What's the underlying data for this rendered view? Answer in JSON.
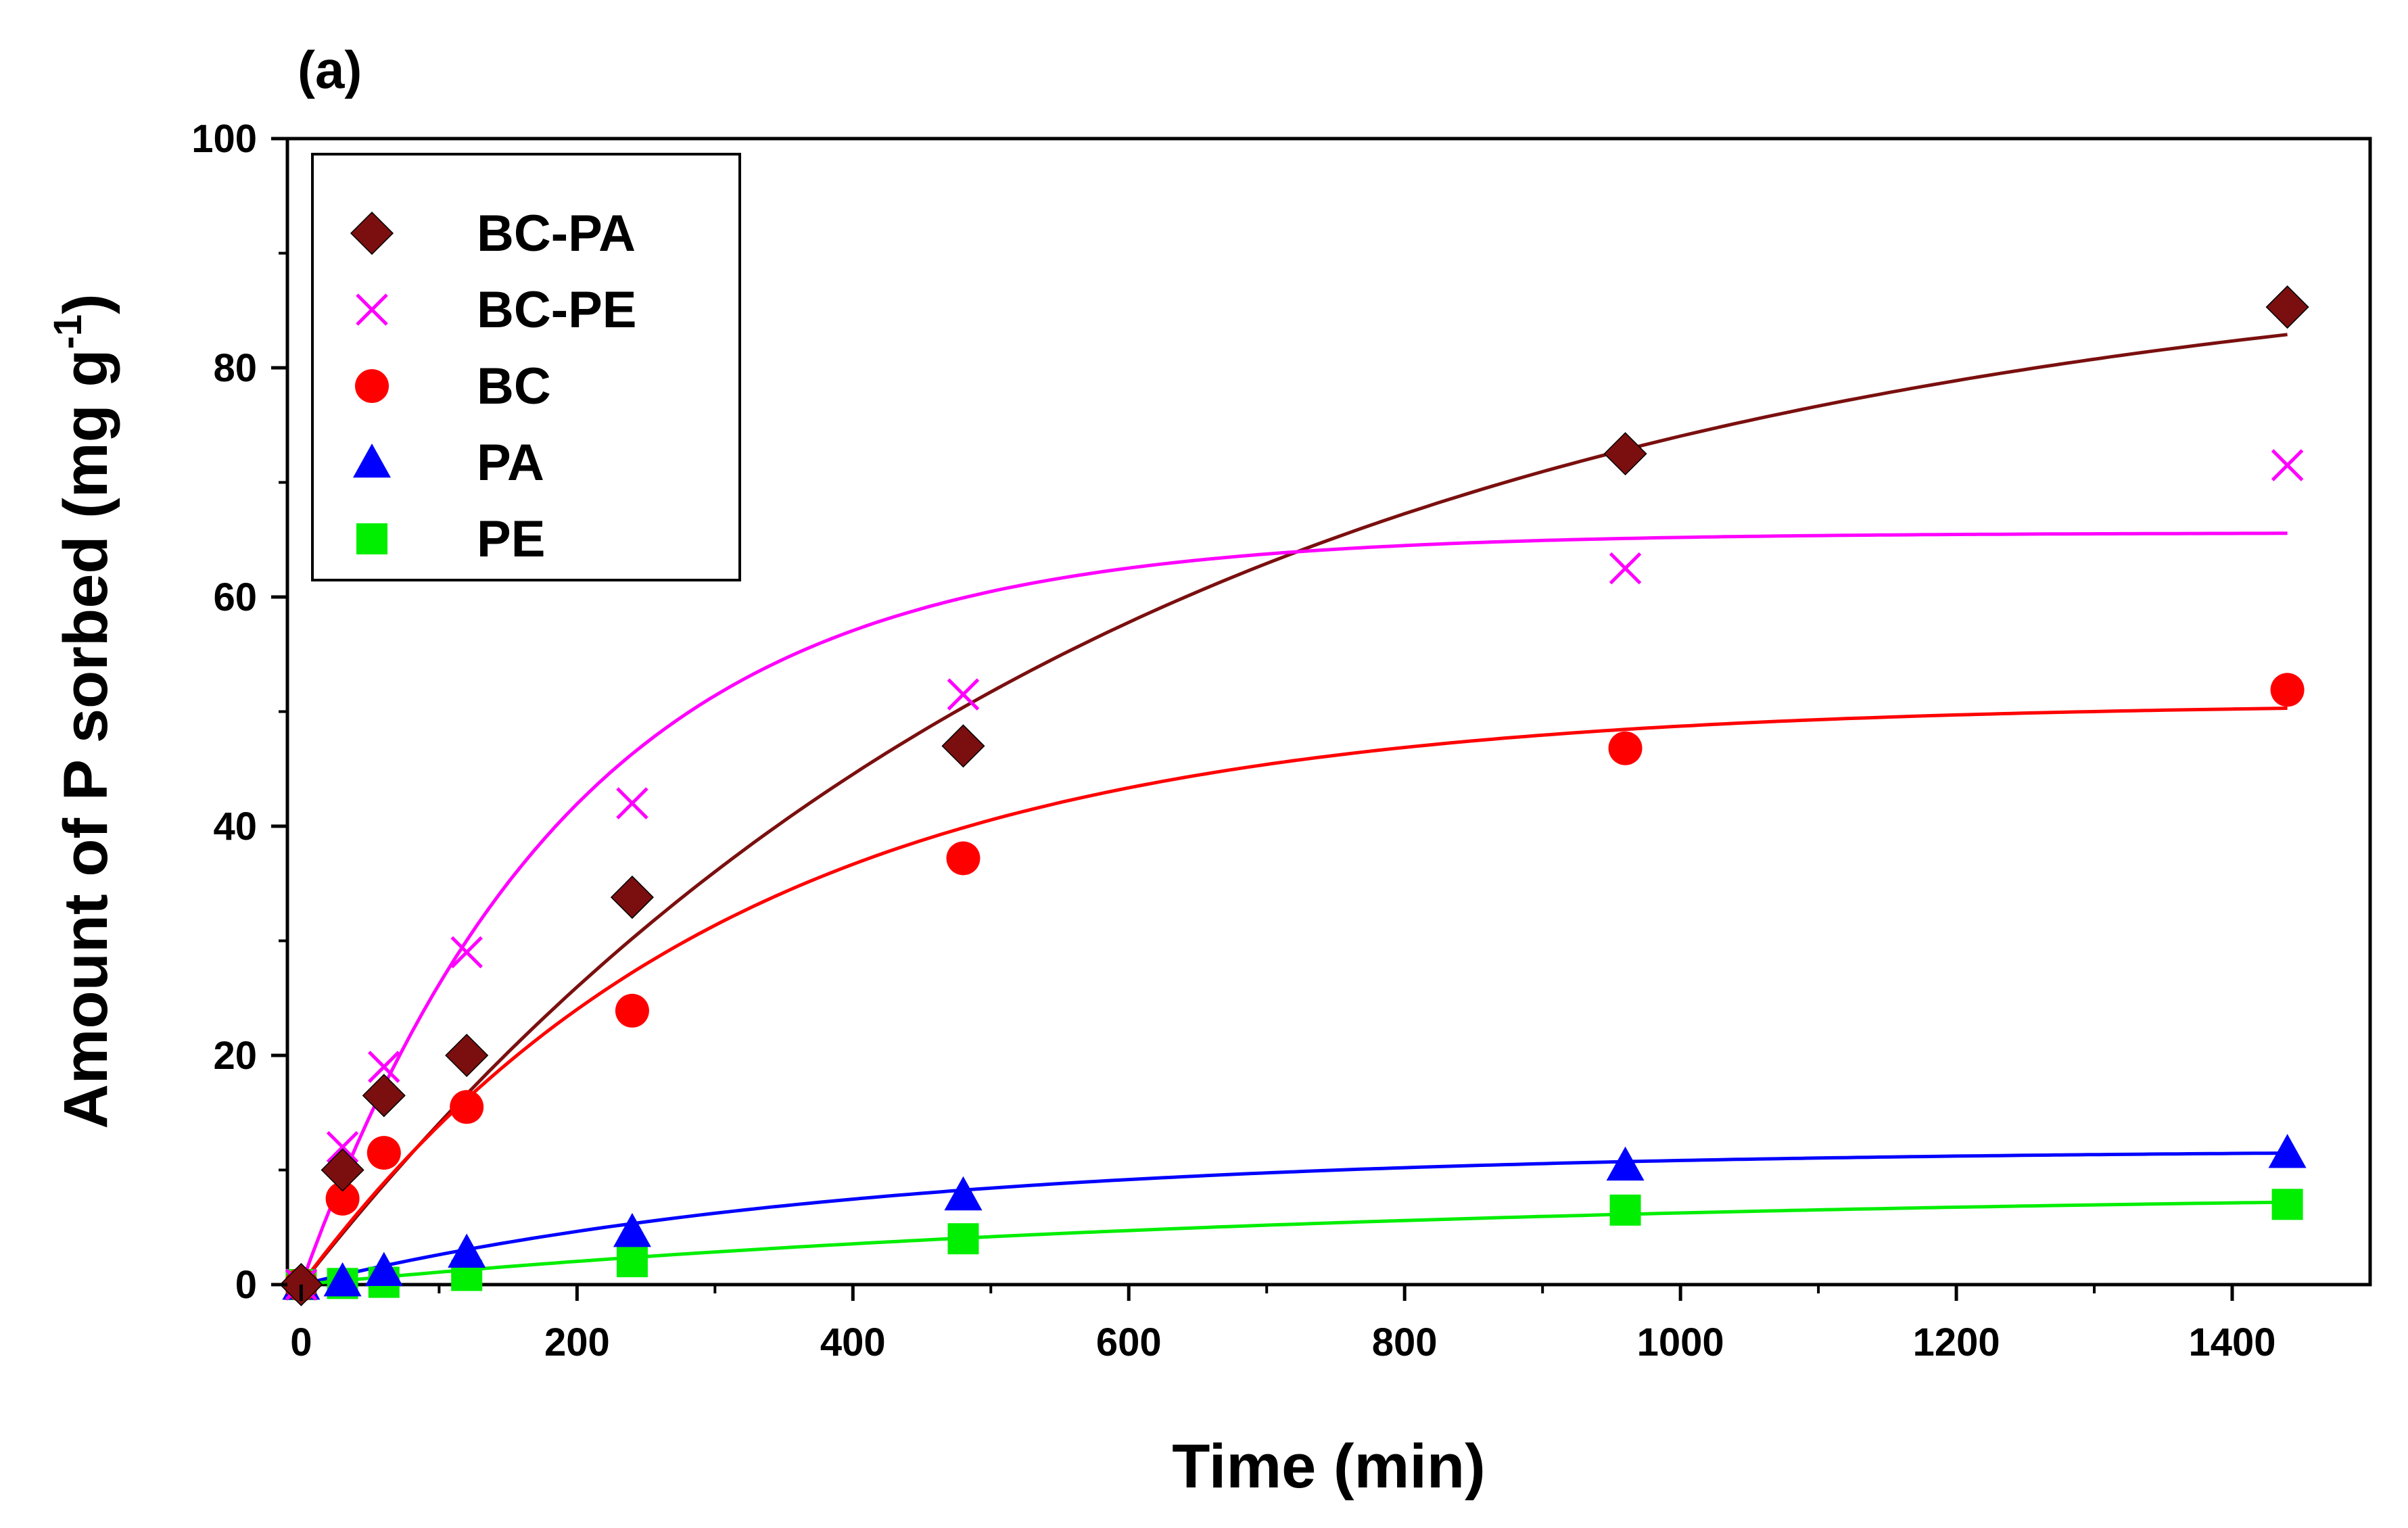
{
  "chart_data": {
    "type": "scatter",
    "panel_label": "(a)",
    "xlabel": "Time (min)",
    "ylabel_main": "Amount of P sorbed (mg g",
    "ylabel_sup": "-1",
    "ylabel_close": ")",
    "xlim": [
      -10,
      1500
    ],
    "ylim": [
      0,
      100
    ],
    "xticks": [
      0,
      200,
      400,
      600,
      800,
      1000,
      1200,
      1400
    ],
    "yticks": [
      0,
      20,
      40,
      60,
      80,
      100
    ],
    "legend_position": "top-left",
    "series": [
      {
        "name": "BC-PA",
        "marker": "diamond",
        "color": "#7b0f0f",
        "x": [
          0,
          30,
          60,
          120,
          240,
          480,
          960,
          1440
        ],
        "y": [
          0,
          10,
          16.5,
          20,
          33.8,
          47,
          72.5,
          85.3
        ],
        "fit": {
          "qe": 91.0,
          "k": 0.00168
        }
      },
      {
        "name": "BC-PE",
        "marker": "cross",
        "color": "#ff00ff",
        "x": [
          0,
          30,
          60,
          120,
          240,
          480,
          960,
          1440
        ],
        "y": [
          0,
          12,
          19,
          29,
          42,
          51.5,
          62.5,
          71.5
        ],
        "fit": {
          "qe": 65.6,
          "k": 0.0051
        }
      },
      {
        "name": "BC",
        "marker": "circle",
        "color": "#ff0000",
        "x": [
          0,
          30,
          60,
          120,
          240,
          480,
          960,
          1440
        ],
        "y": [
          0,
          7.5,
          11.5,
          15.5,
          23.9,
          37.2,
          46.8,
          51.9
        ],
        "fit": {
          "qe": 50.8,
          "k": 0.0032
        }
      },
      {
        "name": "PA",
        "marker": "triangle",
        "color": "#0000ff",
        "x": [
          0,
          30,
          60,
          120,
          240,
          480,
          960,
          1440
        ],
        "y": [
          0,
          0.3,
          1.2,
          2.8,
          4.6,
          7.8,
          10.4,
          11.5
        ],
        "fit": {
          "qe": 11.8,
          "k": 0.0025
        }
      },
      {
        "name": "PE",
        "marker": "square",
        "color": "#00ee00",
        "x": [
          0,
          30,
          60,
          120,
          240,
          480,
          960,
          1440
        ],
        "y": [
          0,
          0.1,
          0.2,
          0.8,
          2.0,
          4.0,
          6.5,
          7.0
        ],
        "fit": {
          "qe": 8.3,
          "k": 0.0014
        }
      }
    ]
  }
}
